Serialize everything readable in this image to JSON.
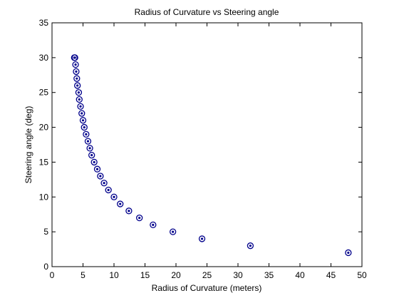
{
  "chart_data": {
    "type": "scatter",
    "title": "Radius of Curvature vs Steering angle",
    "xlabel": "Radius of Curvature (meters)",
    "ylabel": "Steering angle (deg)",
    "xlim": [
      0,
      50
    ],
    "ylim": [
      0,
      35
    ],
    "xticks": [
      "0",
      "5",
      "10",
      "15",
      "20",
      "25",
      "30",
      "35",
      "40",
      "45",
      "50"
    ],
    "yticks": [
      "0",
      "5",
      "10",
      "15",
      "20",
      "25",
      "30",
      "35"
    ],
    "grid": false,
    "marker": "circle-with-dot",
    "marker_color": "#00008b",
    "series": [
      {
        "x": [
          47.8,
          32.0,
          24.2,
          19.5,
          16.3,
          14.1,
          12.4,
          11.0,
          10.0,
          9.1,
          8.4,
          7.8,
          7.3,
          6.8,
          6.4,
          6.1,
          5.8,
          5.5,
          5.2,
          5.0,
          4.8,
          4.6,
          4.4,
          4.3,
          4.1,
          4.0,
          3.9,
          3.8,
          3.7,
          3.6
        ],
        "y": [
          2,
          3,
          4,
          5,
          6,
          7,
          8,
          9,
          10,
          11,
          12,
          13,
          14,
          15,
          16,
          17,
          18,
          19,
          20,
          21,
          22,
          23,
          24,
          25,
          26,
          27,
          28,
          29,
          30,
          30
        ]
      }
    ]
  }
}
